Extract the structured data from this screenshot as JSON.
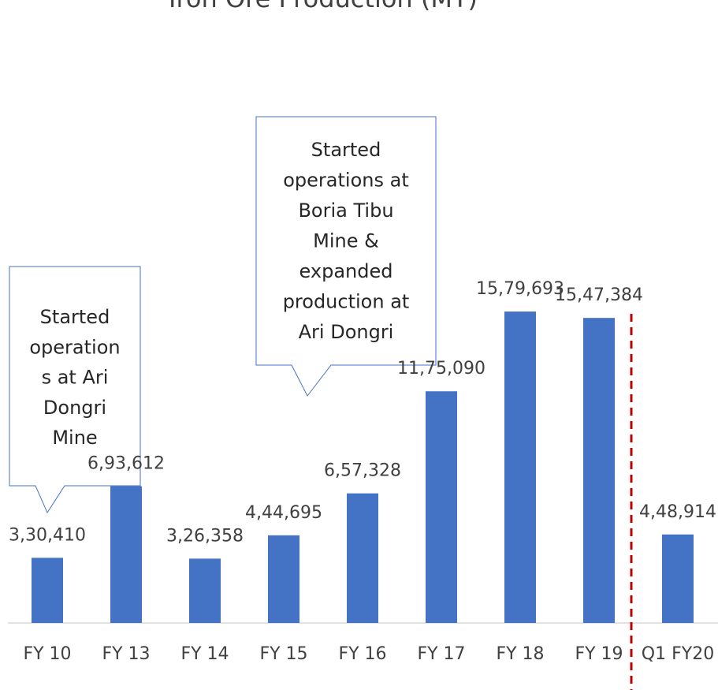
{
  "chart_data": {
    "type": "bar",
    "title": "Iron Ore Production (MT)",
    "categories": [
      "FY 10",
      "FY 13",
      "FY 14",
      "FY 15",
      "FY 16",
      "FY 17",
      "FY 18",
      "FY 19",
      "Q1 FY20"
    ],
    "values": [
      330410,
      693612,
      326358,
      444695,
      657328,
      1175090,
      1579693,
      1547384,
      448914
    ],
    "value_labels": [
      "3,30,410",
      "6,93,612",
      "3,26,358",
      "4,44,695",
      "6,57,328",
      "11,75,090",
      "15,79,693",
      "15,47,384",
      "4,48,914"
    ],
    "color": "#4472c4",
    "ylim": [
      0,
      2000000
    ],
    "annotations": [
      {
        "lines": [
          "Started",
          "operation",
          "s at Ari",
          "Dongri",
          "Mine"
        ]
      },
      {
        "lines": [
          "Started",
          "operations at",
          "Boria Tibu",
          "Mine &",
          "expanded",
          "production at",
          "Ari Dongri"
        ]
      }
    ]
  }
}
